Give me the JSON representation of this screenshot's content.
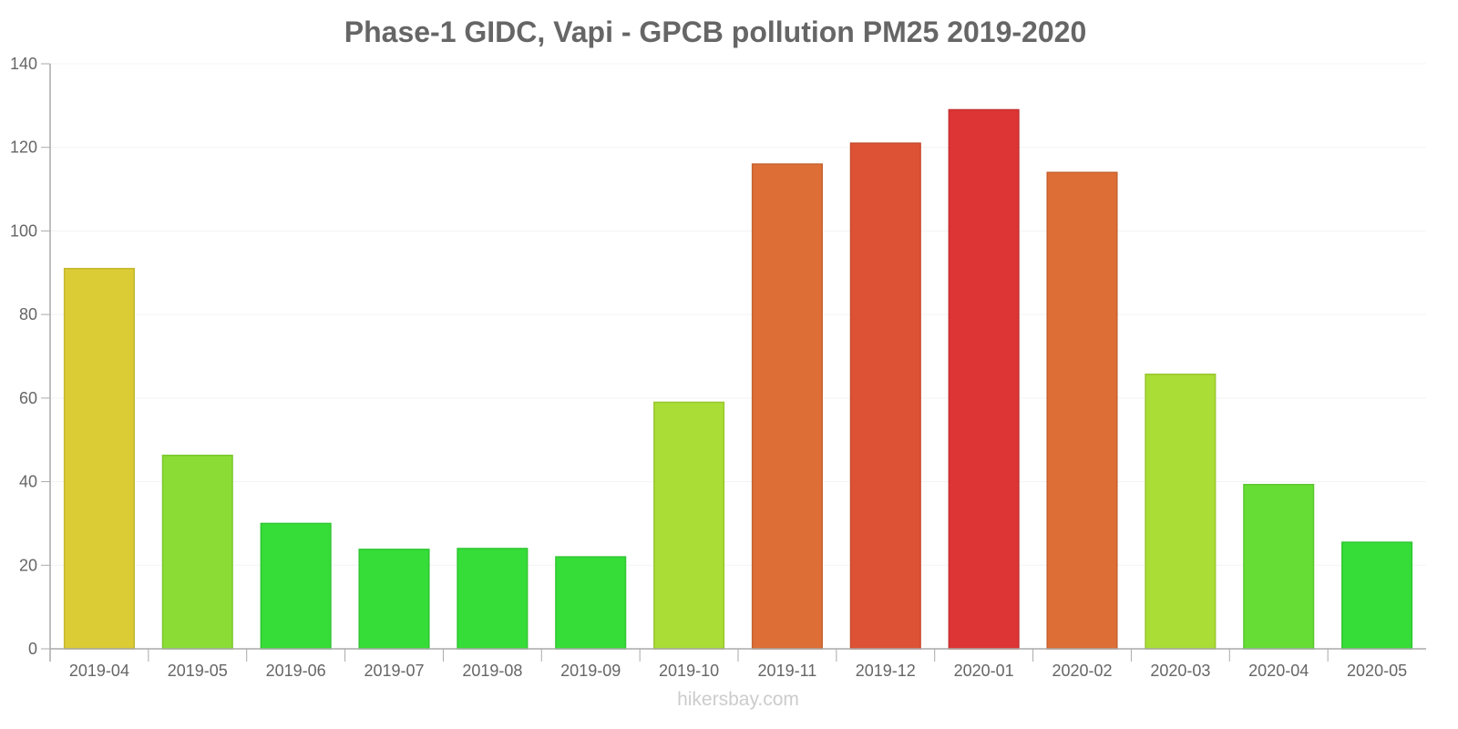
{
  "chart_data": {
    "type": "bar",
    "title": "Phase-1 GIDC, Vapi - GPCB pollution PM25 2019-2020",
    "xlabel": "",
    "ylabel": "",
    "ylim": [
      0,
      140
    ],
    "yticks": [
      0,
      20,
      40,
      60,
      80,
      100,
      120,
      140
    ],
    "grid": true,
    "legend": "none",
    "categories": [
      "2019-04",
      "2019-05",
      "2019-06",
      "2019-07",
      "2019-08",
      "2019-09",
      "2019-10",
      "2019-11",
      "2019-12",
      "2020-01",
      "2020-02",
      "2020-03",
      "2020-04",
      "2020-05"
    ],
    "values": [
      91,
      46.3,
      30,
      23.8,
      24,
      22,
      59,
      116,
      121,
      129,
      114,
      65.7,
      39.3,
      25.5
    ],
    "colors": [
      "#dbcb35",
      "#8bdd35",
      "#36dd38",
      "#36dd38",
      "#36dd38",
      "#36dd38",
      "#aadd35",
      "#dd6e35",
      "#dd5235",
      "#dd3535",
      "#dd6e35",
      "#aadd35",
      "#66dd35",
      "#36dd38"
    ],
    "border_colors": [
      "#c5b62f",
      "#7dc62f",
      "#30c632",
      "#30c632",
      "#30c632",
      "#30c632",
      "#99c62f",
      "#c6622f",
      "#c6492f",
      "#c62f2f",
      "#c6622f",
      "#99c62f",
      "#5bc62f",
      "#30c632"
    ]
  },
  "watermark": "hikersbay.com"
}
